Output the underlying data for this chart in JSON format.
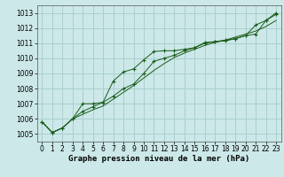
{
  "xlabel": "Graphe pression niveau de la mer (hPa)",
  "background_color": "#cce8e8",
  "grid_color": "#aacfcf",
  "line_color": "#1a5c1a",
  "x": [
    0,
    1,
    2,
    3,
    4,
    5,
    6,
    7,
    8,
    9,
    10,
    11,
    12,
    13,
    14,
    15,
    16,
    17,
    18,
    19,
    20,
    21,
    22,
    23
  ],
  "line1": [
    1005.8,
    1005.1,
    1005.4,
    1006.0,
    1007.0,
    1007.0,
    1007.1,
    1008.5,
    1009.1,
    1009.3,
    1009.9,
    1010.45,
    1010.5,
    1010.5,
    1010.6,
    1010.7,
    1011.05,
    1011.1,
    1011.15,
    1011.3,
    1011.5,
    1012.2,
    1012.5,
    1013.0
  ],
  "line2": [
    1005.8,
    1005.1,
    1005.4,
    1006.0,
    1006.3,
    1006.6,
    1006.85,
    1007.3,
    1007.75,
    1008.2,
    1008.7,
    1009.2,
    1009.65,
    1010.05,
    1010.35,
    1010.6,
    1010.85,
    1011.05,
    1011.2,
    1011.4,
    1011.6,
    1011.8,
    1012.1,
    1012.5
  ],
  "line3": [
    1005.8,
    1005.1,
    1005.4,
    1006.0,
    1006.5,
    1006.8,
    1007.1,
    1007.5,
    1008.0,
    1008.3,
    1009.0,
    1009.8,
    1010.0,
    1010.2,
    1010.5,
    1010.7,
    1011.0,
    1011.1,
    1011.2,
    1011.3,
    1011.5,
    1011.6,
    1012.5,
    1012.9
  ],
  "ylim": [
    1004.5,
    1013.5
  ],
  "yticks": [
    1005,
    1006,
    1007,
    1008,
    1009,
    1010,
    1011,
    1012,
    1013
  ],
  "xticks": [
    0,
    1,
    2,
    3,
    4,
    5,
    6,
    7,
    8,
    9,
    10,
    11,
    12,
    13,
    14,
    15,
    16,
    17,
    18,
    19,
    20,
    21,
    22,
    23
  ],
  "tick_fontsize": 5.5,
  "xlabel_fontsize": 6.5
}
